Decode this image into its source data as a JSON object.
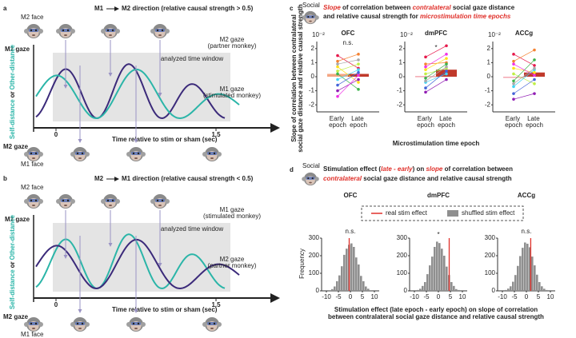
{
  "schematics": [
    {
      "letter": "a",
      "from": "M1",
      "to": "M2 direction (relative causal strength > 0.5)",
      "top_face": "M2 face",
      "bottom_face": "M1 face",
      "left_gaze": "M1 gaze",
      "bottom_gaze": "M2 gaze",
      "ylabel": [
        "Self-distance",
        "or",
        "Other-distance"
      ],
      "window": "analyzed time window",
      "curve_labels": [
        {
          "lines": [
            "M2 gaze",
            "(partner monkey)"
          ],
          "color": "#3b2a7a"
        },
        {
          "lines": [
            "M1 gaze",
            "(stimulated monkey)"
          ],
          "color": "#2bb5a8"
        }
      ],
      "time_ticks": [
        0,
        1.5
      ],
      "time_label": "Time relative to stim or sham (sec)"
    },
    {
      "letter": "b",
      "from": "M2",
      "to": "M1 direction (relative causal strength < 0.5)",
      "top_face": "M2 face",
      "bottom_face": "M1 face",
      "left_gaze": "M1 gaze",
      "bottom_gaze": "M2 gaze",
      "ylabel": [
        "Self-distance",
        "or",
        "Other-distance"
      ],
      "window": "analyzed time window",
      "curve_labels": [
        {
          "lines": [
            "M1 gaze",
            "(stimulated monkey)"
          ],
          "color": "#2bb5a8"
        },
        {
          "lines": [
            "M2 gaze",
            "(partner monkey)"
          ],
          "color": "#3b2a7a"
        }
      ],
      "time_ticks": [
        0,
        1.5
      ],
      "time_label": "Time relative to stim or sham (sec)"
    }
  ],
  "slope_panel": {
    "letter": "c",
    "tag": "Social",
    "title": [
      [
        {
          "text": "Slope",
          "emph": true
        },
        {
          "text": " of correlation between ",
          "emph": false
        },
        {
          "text": "contralateral",
          "emph": true
        },
        {
          "text": " social gaze distance",
          "emph": false
        }
      ],
      [
        {
          "text": "and relative causal strength for ",
          "emph": false
        },
        {
          "text": "microstimulation time epochs",
          "emph": true
        }
      ]
    ],
    "ylabel": [
      "Slope of correlation between contralateral",
      "social gaze distance and relative causal strength"
    ],
    "exponent": "10⁻²",
    "ylim": [
      -2.5,
      2.5
    ],
    "yticks": [
      -2,
      -1,
      0,
      1,
      2
    ],
    "categories": [
      "Early epoch",
      "Late epoch"
    ],
    "xlabel": "Microstimulation time epoch",
    "session_colors": [
      "#e6194b",
      "#f58231",
      "#ffe119",
      "#bfef45",
      "#3cb44b",
      "#42d4f4",
      "#4363d8",
      "#911eb4",
      "#f032e6",
      "#a9a9a9"
    ],
    "regions": [
      {
        "name": "OFC",
        "color": "#1e8c3a",
        "annotation": "n.s.",
        "bars": [
          0.2,
          0.2
        ],
        "bar_colors": [
          "#f4a582",
          "#c0392b"
        ],
        "early": [
          1.5,
          1.1,
          0.7,
          0.4,
          0.2,
          -0.2,
          -0.6,
          -1.0,
          -1.4,
          0.9
        ],
        "late": [
          0.6,
          1.6,
          -0.4,
          0.9,
          -0.9,
          0.5,
          0.3,
          -0.2,
          0.1,
          1.2
        ]
      },
      {
        "name": "dmPFC",
        "color": "#7b3fa0",
        "annotation": "*",
        "bars": [
          0.05,
          0.5
        ],
        "bar_colors": [
          "#f4a6b0",
          "#c0392b"
        ],
        "early": [
          1.4,
          0.9,
          0.5,
          0.2,
          -0.1,
          -0.4,
          -0.8,
          -1.1,
          0.7,
          -0.3
        ],
        "late": [
          2.2,
          1.0,
          1.3,
          0.6,
          0.9,
          0.2,
          0.4,
          -0.2,
          1.6,
          0.7
        ]
      },
      {
        "name": "ACCg",
        "color": "#4fc3e8",
        "bars": [
          0.0,
          0.3
        ],
        "bar_colors": [
          "#f4a6b0",
          "#c0392b"
        ],
        "early": [
          1.6,
          1.1,
          0.6,
          0.2,
          -0.3,
          -0.7,
          -1.2,
          -1.6,
          0.9,
          -0.5
        ],
        "late": [
          0.8,
          1.9,
          0.3,
          -0.5,
          1.2,
          0.5,
          -0.2,
          -1.2,
          0.1,
          0.6
        ]
      }
    ]
  },
  "effect_panel": {
    "letter": "d",
    "tag": "Social",
    "title": [
      [
        {
          "text": "Stimulation effect (",
          "emph": false
        },
        {
          "text": "late - early",
          "emph": true
        },
        {
          "text": ") on ",
          "emph": false
        },
        {
          "text": "slope",
          "emph": true
        },
        {
          "text": " of correlation between",
          "emph": false
        }
      ],
      [
        {
          "text": "contralateral",
          "emph": true
        },
        {
          "text": " social gaze distance and relative causal strength",
          "emph": false
        }
      ]
    ],
    "legend": [
      {
        "name": "real stim effect",
        "color": "#e0302a"
      },
      {
        "name": "shuffled stim effect",
        "color": "#8f8f8f"
      }
    ],
    "ylabel": "Frequency",
    "ylim": [
      0,
      300
    ],
    "yticks": [
      0,
      100,
      200,
      300
    ],
    "xlim": [
      -12,
      12
    ],
    "xticks": [
      -10,
      -5,
      0,
      5,
      10
    ],
    "bins": [
      -9,
      -8,
      -7,
      -6,
      -5,
      -4,
      -3,
      -2,
      -1,
      0,
      1,
      2,
      3,
      4,
      5,
      6,
      7,
      8,
      9
    ],
    "xlabel": [
      "Stimulation effect (late epoch - early epoch) on slope of correlation",
      "between contralateral social gaze distance and relative causal strength"
    ],
    "regions": [
      {
        "name": "OFC",
        "color": "#1e8c3a",
        "annotation": "n.s.",
        "real": -0.5,
        "counts": [
          4,
          10,
          25,
          55,
          88,
          140,
          205,
          240,
          262,
          270,
          250,
          190,
          150,
          85,
          55,
          25,
          12,
          4
        ]
      },
      {
        "name": "dmPFC",
        "color": "#7b3fa0",
        "annotation": "*",
        "real": 4.5,
        "counts": [
          5,
          12,
          28,
          50,
          95,
          145,
          195,
          250,
          280,
          272,
          240,
          200,
          138,
          90,
          50,
          28,
          10,
          5
        ]
      },
      {
        "name": "ACCg",
        "color": "#4fc3e8",
        "annotation": "n.s.",
        "real": 1.8,
        "counts": [
          5,
          13,
          26,
          52,
          90,
          142,
          198,
          245,
          275,
          268,
          248,
          195,
          145,
          92,
          50,
          26,
          12,
          5
        ]
      }
    ]
  }
}
